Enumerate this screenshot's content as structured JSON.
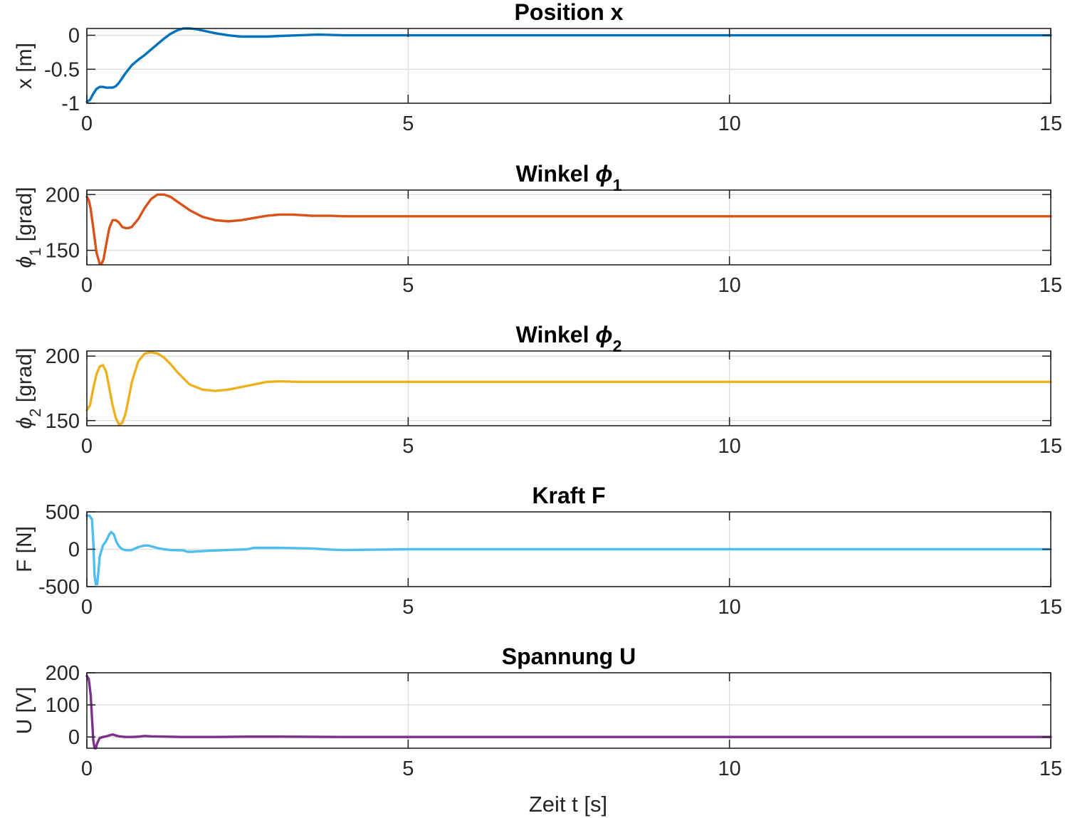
{
  "chart_data": [
    {
      "type": "line",
      "title": "Position x",
      "title_parts": [
        {
          "text": "Position x",
          "italic": false,
          "sub": false
        }
      ],
      "ylabel_parts": [
        {
          "text": "x [m]",
          "italic": false,
          "sub": false
        }
      ],
      "xlabel": "",
      "xlim": [
        0,
        15
      ],
      "ylim": [
        -1,
        0.1
      ],
      "xticks": [
        0,
        5,
        10,
        15
      ],
      "xtick_labels": [
        "0",
        "5",
        "10",
        "15"
      ],
      "yticks": [
        -1,
        -0.5,
        0
      ],
      "ytick_labels": [
        "-1",
        "-0.5",
        "0"
      ],
      "grid": true,
      "color": "#0072bd",
      "x": [
        0,
        0.05,
        0.1,
        0.15,
        0.2,
        0.25,
        0.3,
        0.4,
        0.45,
        0.5,
        0.6,
        0.7,
        0.8,
        0.9,
        1.0,
        1.1,
        1.2,
        1.3,
        1.4,
        1.5,
        1.6,
        1.7,
        1.8,
        1.9,
        2.0,
        2.2,
        2.4,
        2.6,
        2.8,
        3.0,
        3.3,
        3.6,
        4.0,
        4.5,
        5.0,
        6.0,
        8.0,
        10.0,
        12.0,
        15.0
      ],
      "y": [
        -0.98,
        -0.95,
        -0.86,
        -0.79,
        -0.76,
        -0.76,
        -0.77,
        -0.77,
        -0.75,
        -0.7,
        -0.56,
        -0.44,
        -0.36,
        -0.29,
        -0.21,
        -0.13,
        -0.05,
        0.02,
        0.07,
        0.1,
        0.1,
        0.09,
        0.07,
        0.05,
        0.03,
        0.0,
        -0.02,
        -0.02,
        -0.02,
        -0.01,
        0.0,
        0.01,
        0.0,
        0.0,
        0.0,
        0.0,
        0.0,
        0.0,
        0.0,
        0.0
      ]
    },
    {
      "type": "line",
      "title": "Winkel ϕ1",
      "title_parts": [
        {
          "text": "Winkel ",
          "italic": false,
          "sub": false
        },
        {
          "text": "ϕ",
          "italic": true,
          "sub": false
        },
        {
          "text": "1",
          "italic": false,
          "sub": true
        }
      ],
      "ylabel_parts": [
        {
          "text": "ϕ",
          "italic": true,
          "sub": false
        },
        {
          "text": "1",
          "italic": false,
          "sub": true
        },
        {
          "text": " [grad]",
          "italic": false,
          "sub": false
        }
      ],
      "xlabel": "",
      "xlim": [
        0,
        15
      ],
      "ylim": [
        137,
        204
      ],
      "xticks": [
        0,
        5,
        10,
        15
      ],
      "xtick_labels": [
        "0",
        "5",
        "10",
        "15"
      ],
      "yticks": [
        150,
        200
      ],
      "ytick_labels": [
        "150",
        "200"
      ],
      "grid": true,
      "color": "#d95319",
      "x": [
        0,
        0.03,
        0.06,
        0.1,
        0.15,
        0.2,
        0.23,
        0.26,
        0.3,
        0.35,
        0.4,
        0.45,
        0.5,
        0.55,
        0.6,
        0.65,
        0.7,
        0.8,
        0.9,
        1.0,
        1.1,
        1.2,
        1.3,
        1.4,
        1.5,
        1.6,
        1.8,
        2.0,
        2.2,
        2.4,
        2.6,
        2.8,
        3.0,
        3.2,
        3.5,
        3.8,
        4.0,
        4.5,
        5.0,
        6.0,
        8.0,
        10.0,
        12.0,
        15.0
      ],
      "y": [
        198,
        195,
        187,
        170,
        148,
        138,
        138,
        142,
        155,
        170,
        177,
        177,
        175,
        171,
        170,
        170,
        171,
        178,
        188,
        196,
        200,
        200,
        198,
        194,
        190,
        186,
        180,
        177,
        176,
        177,
        179,
        181,
        182,
        182,
        181,
        181,
        180.5,
        180.5,
        180.5,
        180.5,
        180.5,
        180.5,
        180.5,
        180.5
      ]
    },
    {
      "type": "line",
      "title": "Winkel ϕ2",
      "title_parts": [
        {
          "text": "Winkel ",
          "italic": false,
          "sub": false
        },
        {
          "text": "ϕ",
          "italic": true,
          "sub": false
        },
        {
          "text": "2",
          "italic": false,
          "sub": true
        }
      ],
      "ylabel_parts": [
        {
          "text": "ϕ",
          "italic": true,
          "sub": false
        },
        {
          "text": "2",
          "italic": false,
          "sub": true
        },
        {
          "text": " [grad]",
          "italic": false,
          "sub": false
        }
      ],
      "xlabel": "",
      "xlim": [
        0,
        15
      ],
      "ylim": [
        146,
        204
      ],
      "xticks": [
        0,
        5,
        10,
        15
      ],
      "xtick_labels": [
        "0",
        "5",
        "10",
        "15"
      ],
      "yticks": [
        150,
        200
      ],
      "ytick_labels": [
        "150",
        "200"
      ],
      "grid": true,
      "color": "#edb120",
      "x": [
        0,
        0.05,
        0.1,
        0.15,
        0.2,
        0.25,
        0.3,
        0.35,
        0.4,
        0.45,
        0.5,
        0.55,
        0.6,
        0.65,
        0.7,
        0.8,
        0.9,
        1.0,
        1.1,
        1.2,
        1.3,
        1.4,
        1.5,
        1.6,
        1.8,
        2.0,
        2.2,
        2.4,
        2.6,
        2.8,
        3.0,
        3.3,
        3.6,
        4.0,
        4.5,
        5.0,
        6.0,
        8.0,
        10.0,
        12.0,
        15.0
      ],
      "y": [
        158,
        162,
        175,
        186,
        192,
        193,
        188,
        175,
        162,
        152,
        147,
        148,
        155,
        167,
        180,
        196,
        202,
        203,
        202,
        199,
        194,
        188,
        183,
        178,
        174,
        173,
        174,
        176,
        178,
        180,
        180.5,
        180,
        180,
        180,
        180,
        180,
        180,
        180,
        180,
        180,
        180
      ]
    },
    {
      "type": "line",
      "title": "Kraft F",
      "title_parts": [
        {
          "text": "Kraft F",
          "italic": false,
          "sub": false
        }
      ],
      "ylabel_parts": [
        {
          "text": "F [N]",
          "italic": false,
          "sub": false
        }
      ],
      "xlabel": "",
      "xlim": [
        0,
        15
      ],
      "ylim": [
        -500,
        500
      ],
      "xticks": [
        0,
        5,
        10,
        15
      ],
      "xtick_labels": [
        "0",
        "5",
        "10",
        "15"
      ],
      "yticks": [
        -500,
        0,
        500
      ],
      "ytick_labels": [
        "-500",
        "0",
        "500"
      ],
      "grid": true,
      "color": "#4dbeee",
      "x": [
        0,
        0.04,
        0.08,
        0.1,
        0.12,
        0.14,
        0.16,
        0.18,
        0.2,
        0.25,
        0.3,
        0.35,
        0.38,
        0.42,
        0.46,
        0.5,
        0.55,
        0.6,
        0.65,
        0.7,
        0.75,
        0.8,
        0.9,
        0.95,
        1.0,
        1.1,
        1.2,
        1.3,
        1.5,
        1.55,
        1.6,
        1.7,
        1.9,
        2.2,
        2.5,
        2.6,
        2.7,
        3.0,
        3.5,
        3.8,
        4.0,
        4.5,
        5.0,
        5.5,
        6.0,
        8.0,
        10.0,
        12.0,
        15.0
      ],
      "y": [
        450,
        450,
        400,
        100,
        -350,
        -470,
        -470,
        -300,
        -100,
        50,
        110,
        200,
        230,
        200,
        100,
        40,
        0,
        -10,
        -15,
        -10,
        10,
        30,
        50,
        50,
        40,
        15,
        0,
        -10,
        -15,
        -30,
        -35,
        -30,
        -20,
        -10,
        0,
        20,
        20,
        20,
        10,
        -5,
        -10,
        -5,
        0,
        0,
        0,
        0,
        0,
        0,
        0
      ]
    },
    {
      "type": "line",
      "title": "Spannung U",
      "title_parts": [
        {
          "text": "Spannung U",
          "italic": false,
          "sub": false
        }
      ],
      "ylabel_parts": [
        {
          "text": "U [V]",
          "italic": false,
          "sub": false
        }
      ],
      "xlabel": "Zeit t [s]",
      "xlim": [
        0,
        15
      ],
      "ylim": [
        -35,
        200
      ],
      "xticks": [
        0,
        5,
        10,
        15
      ],
      "xtick_labels": [
        "0",
        "5",
        "10",
        "15"
      ],
      "yticks": [
        0,
        100,
        200
      ],
      "ytick_labels": [
        "0",
        "100",
        "200"
      ],
      "grid": true,
      "color": "#7e2f8e",
      "x": [
        0,
        0.03,
        0.06,
        0.08,
        0.1,
        0.12,
        0.14,
        0.16,
        0.2,
        0.25,
        0.3,
        0.35,
        0.4,
        0.45,
        0.5,
        0.6,
        0.7,
        0.8,
        0.9,
        1.0,
        1.5,
        2.0,
        2.5,
        3.0,
        4.0,
        5.0,
        8.0,
        10.0,
        12.0,
        15.0
      ],
      "y": [
        190,
        180,
        130,
        60,
        -10,
        -35,
        -35,
        -20,
        -3,
        0,
        2,
        5,
        8,
        5,
        2,
        0,
        0,
        1,
        3,
        2,
        0,
        0,
        1,
        1,
        0,
        0,
        0,
        0,
        0,
        0
      ]
    }
  ]
}
